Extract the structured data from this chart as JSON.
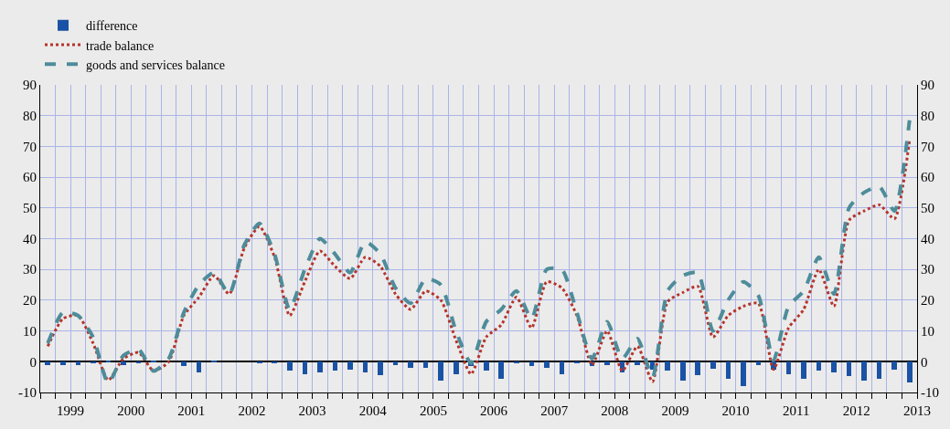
{
  "chart_data": {
    "type": "line",
    "x": [
      1999.125,
      1999.375,
      1999.625,
      1999.875,
      2000.125,
      2000.375,
      2000.625,
      2000.875,
      2001.125,
      2001.375,
      2001.625,
      2001.875,
      2002.125,
      2002.375,
      2002.625,
      2002.875,
      2003.125,
      2003.375,
      2003.625,
      2003.875,
      2004.125,
      2004.375,
      2004.625,
      2004.875,
      2005.125,
      2005.375,
      2005.625,
      2005.875,
      2006.125,
      2006.375,
      2006.625,
      2006.875,
      2007.125,
      2007.375,
      2007.625,
      2007.875,
      2008.125,
      2008.375,
      2008.625,
      2008.875,
      2009.125,
      2009.375,
      2009.625,
      2009.875,
      2010.125,
      2010.375,
      2010.625,
      2010.875,
      2011.125,
      2011.375,
      2011.625,
      2011.875,
      2012.125,
      2012.375,
      2012.625,
      2012.875,
      2013.125,
      2013.375
    ],
    "series": [
      {
        "name": "difference",
        "type": "bar",
        "color": "#1a52a5",
        "values": [
          -1,
          -1,
          -1,
          -0.3,
          0.3,
          -1,
          -0.6,
          0.2,
          0,
          -1.5,
          -3.5,
          0.4,
          0,
          0,
          -0.5,
          -0.5,
          -3,
          -4,
          -3.4,
          -3,
          -2.5,
          -3.5,
          -4.5,
          -1,
          -2,
          -2,
          -6.2,
          -4,
          -1.5,
          -3,
          -5.6,
          -0.5,
          -1.5,
          -2,
          -4.2,
          -0.5,
          -1.5,
          -1.2,
          -3.5,
          -1,
          -2.5,
          -3,
          -6,
          -4.5,
          -2.3,
          -5.5,
          -8,
          -1.2,
          -2.5,
          -4.2,
          -5.5,
          -2.8,
          -3.5,
          -4.8,
          -6,
          -5.5,
          -2.5,
          -6.8
        ]
      },
      {
        "name": "trade balance",
        "line_style": "dotted",
        "color": "#b5342b",
        "values": [
          5,
          14,
          15,
          6,
          -6,
          1,
          3,
          -3,
          0,
          15,
          21,
          28,
          22,
          37,
          44,
          34,
          15,
          26,
          36,
          31,
          27,
          34,
          31,
          22,
          17,
          23,
          20,
          7,
          -4,
          8,
          12,
          21,
          11,
          26,
          24,
          15,
          -1,
          10,
          -3,
          5,
          -6.5,
          19.5,
          22.5,
          24.5,
          8,
          15,
          18,
          19,
          -2.5,
          11,
          17,
          30,
          18,
          46,
          49,
          51,
          46.5,
          72
        ]
      },
      {
        "name": "goods and services balance",
        "line_style": "dashed",
        "color": "#4e8c9a",
        "values": [
          6,
          16,
          15,
          8,
          -7,
          2,
          4,
          -3,
          1,
          16,
          25,
          29,
          22,
          38,
          45,
          35,
          17,
          30,
          40,
          35,
          29,
          39,
          35,
          24,
          19,
          27,
          25,
          10,
          -0.5,
          13,
          17,
          23,
          14,
          30,
          30,
          16,
          1,
          13,
          1,
          7.5,
          -5,
          23,
          28,
          29,
          10,
          20,
          26,
          21.5,
          0.5,
          18,
          23,
          34,
          22,
          50,
          55,
          57,
          49,
          78.5
        ]
      }
    ],
    "xlim": [
      1999,
      2013.5
    ],
    "xticks": [
      {
        "value": 1999,
        "label": null
      },
      {
        "value": 1999.25,
        "label": null
      },
      {
        "value": 1999.5,
        "label": "1999"
      },
      {
        "value": 1999.75,
        "label": null
      },
      {
        "value": 2000,
        "label": null
      },
      {
        "value": 2000.25,
        "label": null
      },
      {
        "value": 2000.5,
        "label": "2000"
      },
      {
        "value": 2000.75,
        "label": null
      },
      {
        "value": 2001,
        "label": null
      },
      {
        "value": 2001.25,
        "label": null
      },
      {
        "value": 2001.5,
        "label": "2001"
      },
      {
        "value": 2001.75,
        "label": null
      },
      {
        "value": 2002,
        "label": null
      },
      {
        "value": 2002.25,
        "label": null
      },
      {
        "value": 2002.5,
        "label": "2002"
      },
      {
        "value": 2002.75,
        "label": null
      },
      {
        "value": 2003,
        "label": null
      },
      {
        "value": 2003.25,
        "label": null
      },
      {
        "value": 2003.5,
        "label": "2003"
      },
      {
        "value": 2003.75,
        "label": null
      },
      {
        "value": 2004,
        "label": null
      },
      {
        "value": 2004.25,
        "label": null
      },
      {
        "value": 2004.5,
        "label": "2004"
      },
      {
        "value": 2004.75,
        "label": null
      },
      {
        "value": 2005,
        "label": null
      },
      {
        "value": 2005.25,
        "label": null
      },
      {
        "value": 2005.5,
        "label": "2005"
      },
      {
        "value": 2005.75,
        "label": null
      },
      {
        "value": 2006,
        "label": null
      },
      {
        "value": 2006.25,
        "label": null
      },
      {
        "value": 2006.5,
        "label": "2006"
      },
      {
        "value": 2006.75,
        "label": null
      },
      {
        "value": 2007,
        "label": null
      },
      {
        "value": 2007.25,
        "label": null
      },
      {
        "value": 2007.5,
        "label": "2007"
      },
      {
        "value": 2007.75,
        "label": null
      },
      {
        "value": 2008,
        "label": null
      },
      {
        "value": 2008.25,
        "label": null
      },
      {
        "value": 2008.5,
        "label": "2008"
      },
      {
        "value": 2008.75,
        "label": null
      },
      {
        "value": 2009,
        "label": null
      },
      {
        "value": 2009.25,
        "label": null
      },
      {
        "value": 2009.5,
        "label": "2009"
      },
      {
        "value": 2009.75,
        "label": null
      },
      {
        "value": 2010,
        "label": null
      },
      {
        "value": 2010.25,
        "label": null
      },
      {
        "value": 2010.5,
        "label": "2010"
      },
      {
        "value": 2010.75,
        "label": null
      },
      {
        "value": 2011,
        "label": null
      },
      {
        "value": 2011.25,
        "label": null
      },
      {
        "value": 2011.5,
        "label": "2011"
      },
      {
        "value": 2011.75,
        "label": null
      },
      {
        "value": 2012,
        "label": null
      },
      {
        "value": 2012.25,
        "label": null
      },
      {
        "value": 2012.5,
        "label": "2012"
      },
      {
        "value": 2012.75,
        "label": null
      },
      {
        "value": 2013,
        "label": null
      },
      {
        "value": 2013.25,
        "label": null
      },
      {
        "value": 2013.5,
        "label": "2013"
      }
    ],
    "ylim": [
      -10,
      90
    ],
    "yticks": [
      -10,
      0,
      10,
      20,
      30,
      40,
      50,
      60,
      70,
      80,
      90
    ],
    "y2lim": [
      -10,
      90
    ],
    "y2ticks": [
      -10,
      0,
      10,
      20,
      30,
      40,
      50,
      60,
      70,
      80,
      90
    ],
    "grid": true,
    "legend": "top left"
  }
}
